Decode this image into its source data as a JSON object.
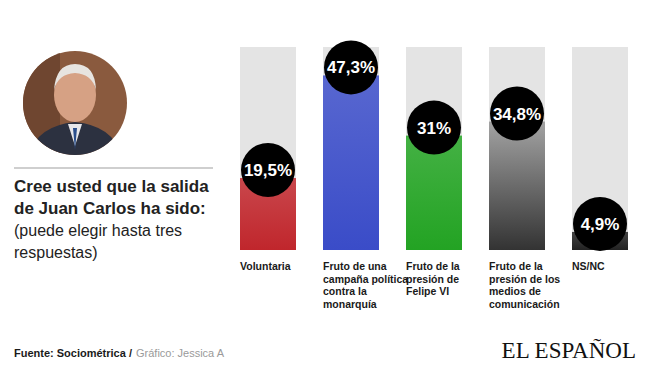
{
  "chart_data": {
    "type": "bar",
    "title": "Cree usted que la salida de Juan Carlos ha sido:",
    "subtitle": "(puede elegir hasta tres respuestas)",
    "categories": [
      "Voluntaria",
      "Fruto de una\ncampaña política\ncontra la\nmonarquía",
      "Fruto de la\npresión de\nFelipe VI",
      "Fruto de la\npresión de los\nmedios de\ncomunicación",
      "NS/NC"
    ],
    "values": [
      19.5,
      47.3,
      31,
      34.8,
      4.9
    ],
    "value_labels": [
      "19,5%",
      "47,3%",
      "31%",
      "34,8%",
      "4,9%"
    ],
    "colors": [
      "#c0262c",
      "#3a4cc8",
      "#23a323",
      "#333333",
      "#222222"
    ],
    "ylim": [
      0,
      55
    ],
    "data_labels": true,
    "tick_labels": false,
    "source": "Fuente: Sociométrica /",
    "credit": "Gráfico: Jessica A",
    "brand": "EL ESPAÑOL"
  }
}
